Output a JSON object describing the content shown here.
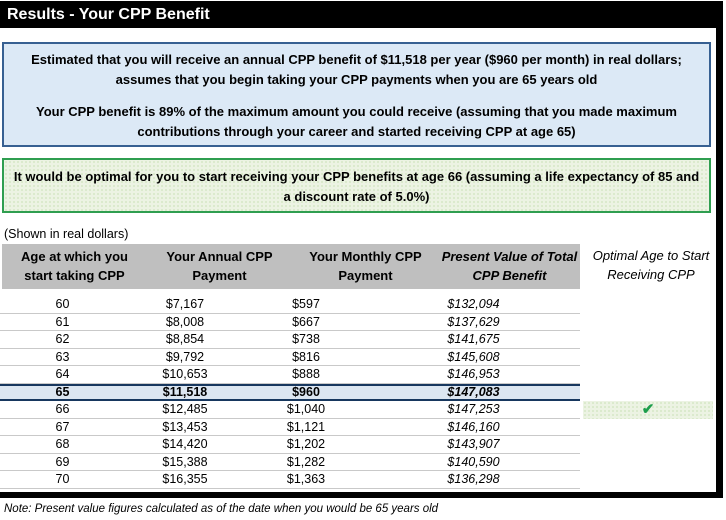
{
  "title": "Results - Your CPP Benefit",
  "summary_box": {
    "line1": "Estimated that you will receive an annual CPP benefit of $11,518 per year ($960 per month) in real dollars; assumes that you begin taking your CPP payments when you are 65 years old",
    "line2": "Your CPP benefit is 89% of the maximum amount you could receive (assuming that you made maximum contributions through your career and started receiving CPP at age 65)"
  },
  "optimal_box": {
    "text": "It would be optimal for you to start receiving your CPP benefits at age 66 (assuming a life expectancy of 85 and a discount rate of 5.0%)"
  },
  "table": {
    "caption": "(Shown in real dollars)",
    "columns": [
      {
        "line1": "Age at which you",
        "line2": "start taking CPP",
        "italic": false
      },
      {
        "line1": "Your Annual CPP",
        "line2": "Payment",
        "italic": false
      },
      {
        "line1": "Your Monthly CPP",
        "line2": "Payment",
        "italic": false
      },
      {
        "line1": "Present Value of Total",
        "line2": "CPP Benefit",
        "italic": true
      }
    ],
    "optimal_column": {
      "line1": "Optimal Age to Start",
      "line2": "Receiving CPP"
    },
    "check_glyph": "✔",
    "rows": [
      {
        "age": "60",
        "annual": "$7,167",
        "monthly": "$597",
        "present_value": "$132,094",
        "highlight": false,
        "optimal": false
      },
      {
        "age": "61",
        "annual": "$8,008",
        "monthly": "$667",
        "present_value": "$137,629",
        "highlight": false,
        "optimal": false
      },
      {
        "age": "62",
        "annual": "$8,854",
        "monthly": "$738",
        "present_value": "$141,675",
        "highlight": false,
        "optimal": false
      },
      {
        "age": "63",
        "annual": "$9,792",
        "monthly": "$816",
        "present_value": "$145,608",
        "highlight": false,
        "optimal": false
      },
      {
        "age": "64",
        "annual": "$10,653",
        "monthly": "$888",
        "present_value": "$146,953",
        "highlight": false,
        "optimal": false
      },
      {
        "age": "65",
        "annual": "$11,518",
        "monthly": "$960",
        "present_value": "$147,083",
        "highlight": true,
        "optimal": false
      },
      {
        "age": "66",
        "annual": "$12,485",
        "monthly": "$1,040",
        "present_value": "$147,253",
        "highlight": false,
        "optimal": true
      },
      {
        "age": "67",
        "annual": "$13,453",
        "monthly": "$1,121",
        "present_value": "$146,160",
        "highlight": false,
        "optimal": false
      },
      {
        "age": "68",
        "annual": "$14,420",
        "monthly": "$1,202",
        "present_value": "$143,907",
        "highlight": false,
        "optimal": false
      },
      {
        "age": "69",
        "annual": "$15,388",
        "monthly": "$1,282",
        "present_value": "$140,590",
        "highlight": false,
        "optimal": false
      },
      {
        "age": "70",
        "annual": "$16,355",
        "monthly": "$1,363",
        "present_value": "$136,298",
        "highlight": false,
        "optimal": false
      }
    ]
  },
  "note": "Note: Present value figures calculated as of the date when you would be 65 years old",
  "colors": {
    "info_box_bg": "#dce9f6",
    "info_box_border": "#376092",
    "optimal_box_bg": "#ecf3e3",
    "optimal_box_border": "#2f9e50",
    "optimal_box_dot": "#d5e7c6",
    "header_bg": "#bfbfbf",
    "sep_color": "#c9c9c9",
    "highlight_row_bg": "#dce6f1",
    "highlight_row_border": "#17375e",
    "check_green": "#1d9e4b"
  }
}
